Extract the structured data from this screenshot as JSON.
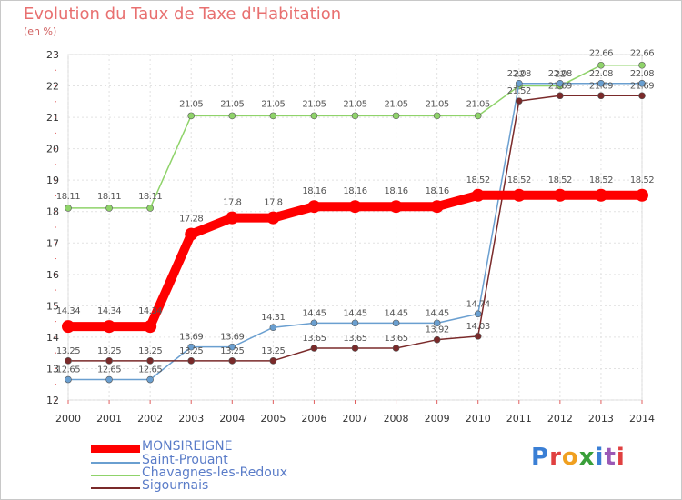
{
  "title": "Evolution du Taux de Taxe d'Habitation",
  "unit_label": "(en %)",
  "logo_text": "Proxiti",
  "chart_data": {
    "type": "line",
    "title": "Evolution du Taux de Taxe d'Habitation",
    "ylabel": "(en %)",
    "xlabel": "",
    "x": [
      "2000",
      "2001",
      "2002",
      "2003",
      "2004",
      "2005",
      "2006",
      "2007",
      "2008",
      "2009",
      "2010",
      "2011",
      "2012",
      "2013",
      "2014"
    ],
    "ylim": [
      12,
      23
    ],
    "yticks": [
      12,
      13,
      14,
      15,
      16,
      17,
      18,
      19,
      20,
      21,
      22,
      23
    ],
    "grid": true,
    "legend_position": "bottom-left",
    "series": [
      {
        "name": "MONSIREIGNE",
        "color": "#ff0000",
        "values": [
          14.34,
          14.34,
          14.34,
          17.28,
          17.8,
          17.8,
          18.16,
          18.16,
          18.16,
          18.16,
          18.52,
          18.52,
          18.52,
          18.52,
          18.52
        ],
        "labels": [
          "14.34",
          "14.34",
          "14.34",
          "17.28",
          "17.8",
          "17.8",
          "18.16",
          "18.16",
          "18.16",
          "18.16",
          "18.52",
          "18.52",
          "18.52",
          "18.52",
          "18.52"
        ]
      },
      {
        "name": "Saint-Prouant",
        "color": "#6a9fd0",
        "values": [
          12.65,
          12.65,
          12.65,
          13.69,
          13.69,
          14.31,
          14.45,
          14.45,
          14.45,
          14.45,
          14.74,
          22.08,
          22.08,
          22.08,
          22.08
        ],
        "labels": [
          "12.65",
          "12.65",
          "12.65",
          "13.69",
          "13.69",
          "14.31",
          "14.45",
          "14.45",
          "14.45",
          "14.45",
          "14.74",
          "22.08",
          "22.08",
          "22.08",
          "22.08"
        ]
      },
      {
        "name": "Chavagnes-les-Redoux",
        "color": "#8fd36a",
        "values": [
          18.11,
          18.11,
          18.11,
          21.05,
          21.05,
          21.05,
          21.05,
          21.05,
          21.05,
          21.05,
          21.05,
          22.0,
          22.0,
          22.66,
          22.66
        ],
        "labels": [
          "18.11",
          "18.11",
          "18.11",
          "21.05",
          "21.05",
          "21.05",
          "21.05",
          "21.05",
          "21.05",
          "21.05",
          "21.05",
          "22",
          "22",
          "22.66",
          "22.66"
        ]
      },
      {
        "name": "Sigournais",
        "color": "#7a2a2a",
        "values": [
          13.25,
          13.25,
          13.25,
          13.25,
          13.25,
          13.25,
          13.65,
          13.65,
          13.65,
          13.92,
          14.03,
          21.52,
          21.69,
          21.69,
          21.69
        ],
        "labels": [
          "13.25",
          "13.25",
          "13.25",
          "13.25",
          "13.25",
          "13.25",
          "13.65",
          "13.65",
          "13.65",
          "13.92",
          "14.03",
          "21.52",
          "21.69",
          "21.69",
          "21.69"
        ]
      }
    ]
  }
}
